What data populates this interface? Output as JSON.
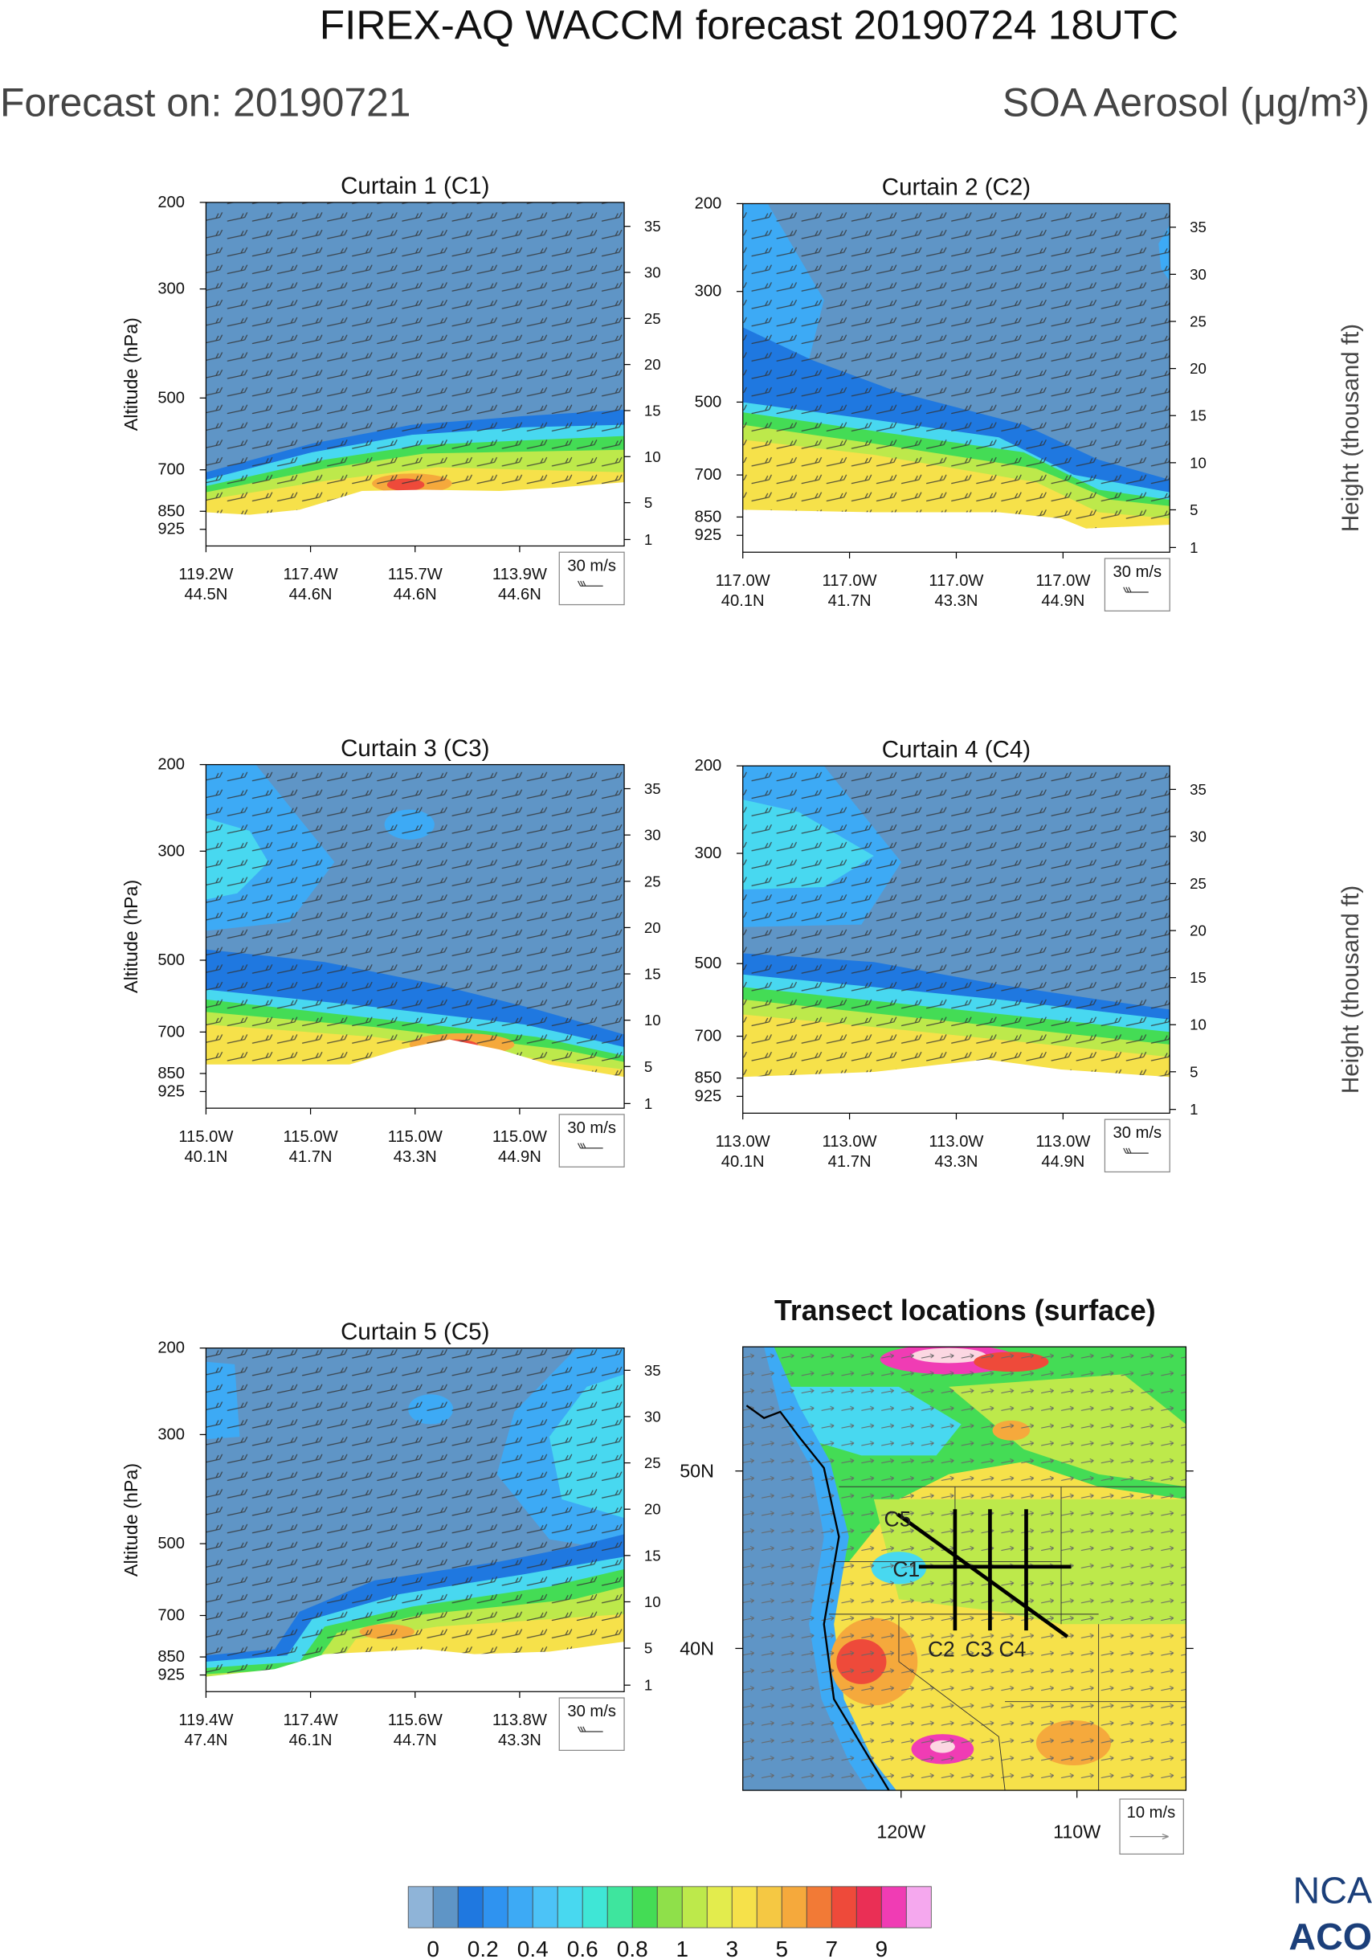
{
  "title": "FIREX-AQ WACCM forecast 20190724 18UTC",
  "forecast_on": "Forecast on: 20190721",
  "quantity": "SOA Aerosol (μg/m³)",
  "logo": [
    "NCA",
    "ACO"
  ],
  "chart_data": [
    {
      "type": "curtain",
      "title": "Curtain 1 (C1)",
      "y_label": "Altitude (hPa)",
      "log_y": true,
      "ylim": [
        1000,
        200
      ],
      "yticks": [
        200,
        300,
        500,
        700,
        850,
        925
      ],
      "y2lim": [
        0.3,
        37.6
      ],
      "y2ticks": [
        1,
        5,
        10,
        15,
        20,
        25,
        30,
        35
      ],
      "categories": [
        [
          "119.2W",
          "44.5N"
        ],
        [
          "117.4W",
          "44.6N"
        ],
        [
          "115.7W",
          "44.6N"
        ],
        [
          "113.9W",
          "44.6N"
        ]
      ],
      "wind_key": "30 m/s"
    },
    {
      "type": "curtain",
      "title": "Curtain 2 (C2)",
      "y2_label": "Height (thousand ft)",
      "log_y": true,
      "ylim": [
        1000,
        200
      ],
      "yticks": [
        200,
        300,
        500,
        700,
        850,
        925
      ],
      "y2lim": [
        0.5,
        37.5
      ],
      "y2ticks": [
        1,
        5,
        10,
        15,
        20,
        25,
        30,
        35
      ],
      "categories": [
        [
          "117.0W",
          "40.1N"
        ],
        [
          "117.0W",
          "41.7N"
        ],
        [
          "117.0W",
          "43.3N"
        ],
        [
          "117.0W",
          "44.9N"
        ]
      ],
      "wind_key": "30 m/s"
    },
    {
      "type": "curtain",
      "title": "Curtain 3 (C3)",
      "y_label": "Altitude (hPa)",
      "log_y": true,
      "ylim": [
        1000,
        200
      ],
      "yticks": [
        200,
        300,
        500,
        700,
        850,
        925
      ],
      "y2lim": [
        0.5,
        37.6
      ],
      "y2ticks": [
        1,
        5,
        10,
        15,
        20,
        25,
        30,
        35
      ],
      "categories": [
        [
          "115.0W",
          "40.1N"
        ],
        [
          "115.0W",
          "41.7N"
        ],
        [
          "115.0W",
          "43.3N"
        ],
        [
          "115.0W",
          "44.9N"
        ]
      ],
      "wind_key": "30 m/s"
    },
    {
      "type": "curtain",
      "title": "Curtain 4 (C4)",
      "y2_label": "Height (thousand ft)",
      "log_y": true,
      "ylim": [
        1000,
        200
      ],
      "yticks": [
        200,
        300,
        500,
        700,
        850,
        925
      ],
      "y2lim": [
        0.6,
        37.5
      ],
      "y2ticks": [
        1,
        5,
        10,
        15,
        20,
        25,
        30,
        35
      ],
      "categories": [
        [
          "113.0W",
          "40.1N"
        ],
        [
          "113.0W",
          "41.7N"
        ],
        [
          "113.0W",
          "43.3N"
        ],
        [
          "113.0W",
          "44.9N"
        ]
      ],
      "wind_key": "30 m/s"
    },
    {
      "type": "curtain",
      "title": "Curtain 5 (C5)",
      "y_label": "Altitude (hPa)",
      "log_y": true,
      "ylim": [
        1000,
        200
      ],
      "yticks": [
        200,
        300,
        500,
        700,
        850,
        925
      ],
      "y2lim": [
        0.3,
        37.4
      ],
      "y2ticks": [
        1,
        5,
        10,
        15,
        20,
        25,
        30,
        35
      ],
      "categories": [
        [
          "119.4W",
          "47.4N"
        ],
        [
          "117.4W",
          "46.1N"
        ],
        [
          "115.6W",
          "44.7N"
        ],
        [
          "113.8W",
          "43.3N"
        ]
      ],
      "wind_key": "30 m/s"
    },
    {
      "type": "map",
      "title": "Transect locations (surface)",
      "xlim": [
        -129,
        -103.8
      ],
      "ylim": [
        32,
        57
      ],
      "xticks": [
        {
          "value": -120,
          "label": "120W"
        },
        {
          "value": -110,
          "label": "110W"
        }
      ],
      "yticks": [
        {
          "value": 40,
          "label": "40N"
        },
        {
          "value": 50,
          "label": "50N"
        }
      ],
      "transect_labels": [
        "C1",
        "C2",
        "C3",
        "C4",
        "C5"
      ],
      "wind_key": "10 m/s"
    },
    {
      "type": "colorbar",
      "colors": [
        "#8fb4d8",
        "#5f95c6",
        "#1f78e0",
        "#2f93f0",
        "#3daaf5",
        "#4cc3f7",
        "#48d8f0",
        "#3fe6d6",
        "#3ee59e",
        "#44dc55",
        "#8fe04a",
        "#bde94b",
        "#e3ec4d",
        "#f6e14a",
        "#f5c843",
        "#f5a93c",
        "#f27a36",
        "#ee4a3a",
        "#ea2f55",
        "#f03cb4",
        "#f5a8ee"
      ],
      "ticks": [
        0,
        0.2,
        0.4,
        0.6,
        0.8,
        1,
        3,
        5,
        7,
        9
      ]
    }
  ]
}
